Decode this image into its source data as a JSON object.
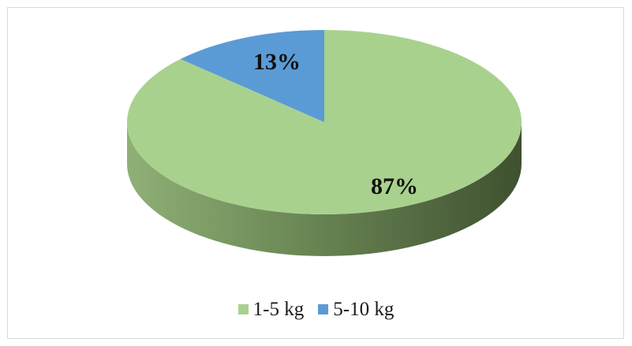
{
  "chart_data": {
    "type": "pie",
    "style": "3d",
    "categories": [
      "1-5 kg",
      "5-10 kg"
    ],
    "values": [
      87,
      13
    ],
    "labels": [
      "87%",
      "13%"
    ],
    "colors": [
      "#a9d18e",
      "#5b9bd5"
    ],
    "legend_position": "bottom",
    "title": ""
  }
}
